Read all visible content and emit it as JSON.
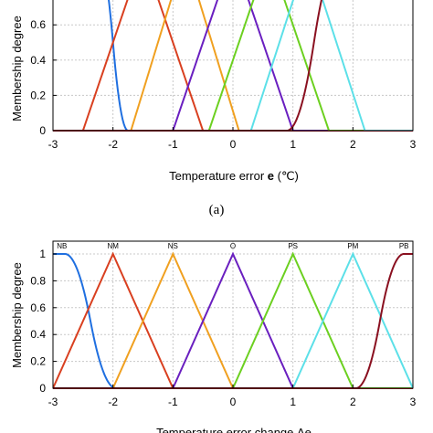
{
  "colors": {
    "NB": "#1f6fe0",
    "NM": "#d94020",
    "NS": "#f0a020",
    "O": "#6a1fc0",
    "PS": "#6cd020",
    "PM": "#5ce0e8",
    "PB": "#8a1020",
    "baseline": "#ad1a2a"
  },
  "chart_data": [
    {
      "type": "line",
      "xlabel": "Temperature error e (℃)",
      "ylabel": "Membership degree",
      "caption": "(a)",
      "xlim": [
        -3,
        3
      ],
      "ylim": [
        0,
        1
      ],
      "xticks": [
        "-3",
        "-2",
        "-1",
        "0",
        "1",
        "2",
        "3"
      ],
      "yticks": [
        "0",
        "0.2",
        "0.4",
        "0.6",
        "0.8"
      ],
      "series": [
        {
          "shape": "zmf",
          "params": [
            -2.25,
            -1.75
          ],
          "color_key": "NB"
        },
        {
          "shape": "trimf",
          "params": [
            -2.5,
            -1.5,
            -0.5
          ],
          "color_key": "NM"
        },
        {
          "shape": "trimf",
          "params": [
            -1.7,
            -0.8,
            0.1
          ],
          "color_key": "NS"
        },
        {
          "shape": "trimf",
          "params": [
            -1.0,
            0.0,
            1.0
          ],
          "color_key": "O"
        },
        {
          "shape": "trimf",
          "params": [
            -0.4,
            0.6,
            1.6
          ],
          "color_key": "PS"
        },
        {
          "shape": "trimf",
          "params": [
            0.3,
            1.25,
            2.2
          ],
          "color_key": "PM"
        },
        {
          "shape": "smf",
          "params": [
            0.9,
            1.8
          ],
          "color_key": "PB"
        }
      ]
    },
    {
      "type": "line",
      "xlabel": "Temperature error change Δe",
      "ylabel": "Membership degree",
      "xlim": [
        -3,
        3
      ],
      "ylim": [
        0,
        1
      ],
      "xticks": [
        "-3",
        "-2",
        "-1",
        "0",
        "1",
        "2",
        "3"
      ],
      "yticks": [
        "0",
        "0.2",
        "0.4",
        "0.6",
        "0.8",
        "1"
      ],
      "series": [
        {
          "name": "NB",
          "shape": "zmf",
          "params": [
            -2.8,
            -1.95
          ],
          "color_key": "NB"
        },
        {
          "name": "NM",
          "shape": "trimf",
          "params": [
            -3,
            -2,
            -1
          ],
          "color_key": "NM"
        },
        {
          "name": "NS",
          "shape": "trimf",
          "params": [
            -2,
            -1,
            0
          ],
          "color_key": "NS"
        },
        {
          "name": "O",
          "shape": "trimf",
          "params": [
            -1,
            0,
            1
          ],
          "color_key": "O"
        },
        {
          "name": "PS",
          "shape": "trimf",
          "params": [
            0,
            1,
            2
          ],
          "color_key": "PS"
        },
        {
          "name": "PM",
          "shape": "trimf",
          "params": [
            1,
            2,
            3
          ],
          "color_key": "PM"
        },
        {
          "name": "PB",
          "shape": "smf",
          "params": [
            2.05,
            2.85
          ],
          "color_key": "PB"
        }
      ],
      "label_positions_x": [
        -2.85,
        -2,
        -1,
        0,
        1,
        2,
        2.85
      ]
    }
  ]
}
